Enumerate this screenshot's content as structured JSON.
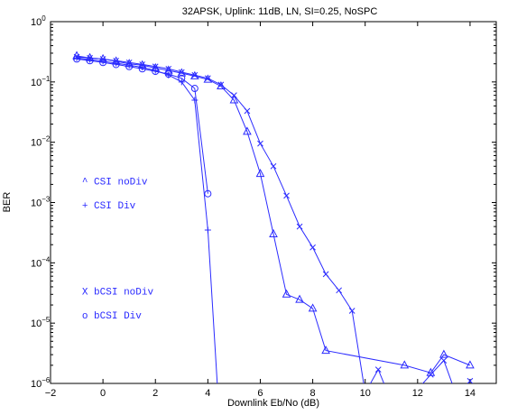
{
  "chart_data": {
    "type": "line",
    "title": "32APSK, Uplink: 11dB, LN, SI=0.25,  NoSPC",
    "xlabel": "Downlink Eb/No (dB)",
    "ylabel": "BER",
    "xlim": [
      -2,
      15
    ],
    "ylim": [
      1e-06,
      1
    ],
    "yscale": "log",
    "grid": false,
    "xticks": [
      "−2",
      "0",
      "2",
      "4",
      "6",
      "8",
      "10",
      "12",
      "14"
    ],
    "xtick_values": [
      -2,
      0,
      2,
      4,
      6,
      8,
      10,
      12,
      14
    ],
    "yticks": [
      {
        "value": 1,
        "base": "10",
        "exp": "0"
      },
      {
        "value": 0.1,
        "base": "10",
        "exp": "−1"
      },
      {
        "value": 0.01,
        "base": "10",
        "exp": "−2"
      },
      {
        "value": 0.001,
        "base": "10",
        "exp": "−3"
      },
      {
        "value": 0.0001,
        "base": "10",
        "exp": "−4"
      },
      {
        "value": 1e-05,
        "base": "10",
        "exp": "−5"
      },
      {
        "value": 1e-06,
        "base": "10",
        "exp": "−6"
      }
    ],
    "line_color": "#2b2bff",
    "series": [
      {
        "name": "CSI noDiv",
        "marker": "triangle",
        "x": [
          -1,
          -0.5,
          0,
          0.5,
          1,
          1.5,
          2,
          2.5,
          3,
          3.5,
          4,
          4.5,
          5,
          5.5,
          6,
          6.5,
          7,
          7.5,
          8,
          8.5,
          11.5,
          12.5,
          13,
          14
        ],
        "y": [
          0.27,
          0.25,
          0.24,
          0.22,
          0.2,
          0.19,
          0.17,
          0.155,
          0.14,
          0.125,
          0.11,
          0.085,
          0.05,
          0.015,
          0.003,
          0.0003,
          3e-05,
          2.45e-05,
          1.75e-05,
          3.5e-06,
          2e-06,
          1.5e-06,
          3e-06,
          2e-06
        ]
      },
      {
        "name": "CSI   Div",
        "marker": "plus",
        "x": [
          -1,
          -0.5,
          0,
          0.5,
          1,
          1.5,
          2,
          2.5,
          3,
          3.5,
          4,
          4.4
        ],
        "y": [
          0.25,
          0.235,
          0.22,
          0.205,
          0.19,
          0.175,
          0.155,
          0.13,
          0.1,
          0.05,
          0.00035,
          5e-07
        ]
      },
      {
        "name": "bCSI noDiv",
        "marker": "x",
        "x": [
          -1,
          -0.5,
          0,
          0.5,
          1,
          1.5,
          2,
          2.5,
          3,
          3.5,
          4,
          4.5,
          5,
          5.5,
          6,
          6.5,
          7,
          7.5,
          8,
          8.5,
          9,
          9.5,
          10,
          10.5,
          11,
          12,
          12.5,
          13,
          13.5,
          14
        ],
        "y": [
          0.26,
          0.25,
          0.24,
          0.225,
          0.21,
          0.195,
          0.18,
          0.165,
          0.145,
          0.13,
          0.115,
          0.09,
          0.06,
          0.033,
          0.0095,
          0.004,
          0.0013,
          0.0004,
          0.00018,
          6.5e-05,
          3.5e-05,
          1.6e-05,
          7e-07,
          1.7e-06,
          5e-07,
          8e-07,
          1.4e-06,
          2.4e-06,
          6e-07,
          1.1e-06
        ]
      },
      {
        "name": "bCSI   Div",
        "marker": "circle",
        "x": [
          -1,
          -0.5,
          0,
          0.5,
          1,
          1.5,
          2,
          2.5,
          3,
          3.5,
          4
        ],
        "y": [
          0.24,
          0.225,
          0.21,
          0.195,
          0.18,
          0.165,
          0.15,
          0.135,
          0.115,
          0.078,
          0.0014
        ]
      }
    ],
    "annotations": [
      {
        "symbol": "^",
        "text": "CSI noDiv",
        "x": -0.8,
        "y": 0.002
      },
      {
        "symbol": "+",
        "text": "CSI   Div",
        "x": -0.8,
        "y": 0.0008
      },
      {
        "symbol": "X",
        "text": "bCSI noDiv",
        "x": -0.8,
        "y": 3e-05
      },
      {
        "symbol": "o",
        "text": "bCSI   Div",
        "x": -0.8,
        "y": 1.2e-05
      }
    ]
  }
}
